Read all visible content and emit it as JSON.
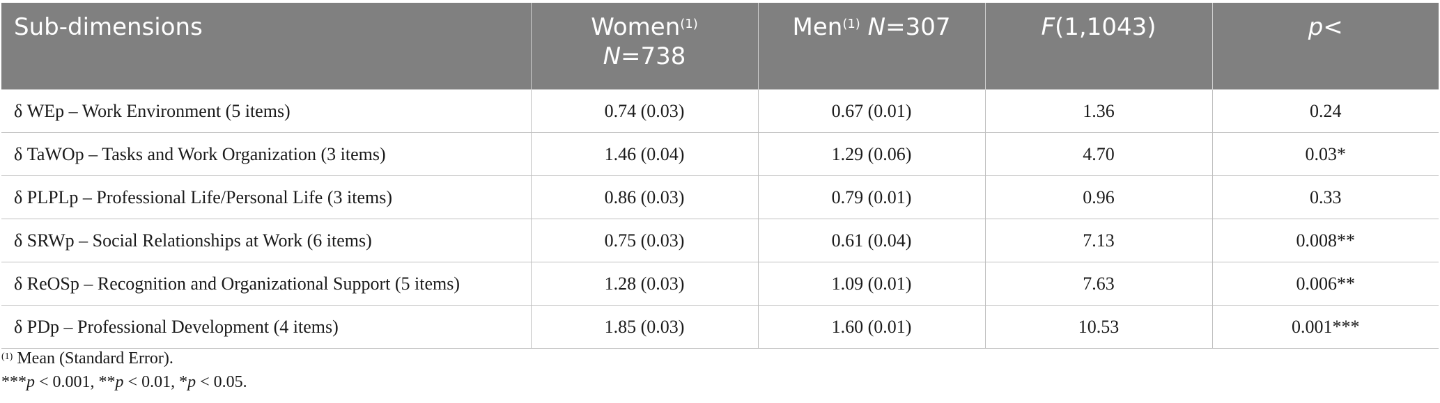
{
  "table": {
    "headers": {
      "col0": "Sub-dimensions",
      "col1_name": "Women",
      "col1_sup": "(1)",
      "col1_n_label": "N",
      "col1_n_value": "=738",
      "col2_name": "Men",
      "col2_sup": "(1)",
      "col2_n_label": "N",
      "col2_n_value": "=307",
      "col3_stat": "F",
      "col3_df": "(1,1043)",
      "col4_p": "p",
      "col4_op": "<"
    },
    "rows": [
      {
        "dimension": "δ WEp – Work Environment (5 items)",
        "women": "0.74 (0.03)",
        "men": "0.67 (0.01)",
        "f": "1.36",
        "p": "0.24"
      },
      {
        "dimension": "δ TaWOp – Tasks and Work Organization (3 items)",
        "women": "1.46 (0.04)",
        "men": "1.29 (0.06)",
        "f": "4.70",
        "p": "0.03*"
      },
      {
        "dimension": "δ PLPLp – Professional Life/Personal Life (3 items)",
        "women": "0.86 (0.03)",
        "men": "0.79 (0.01)",
        "f": "0.96",
        "p": "0.33"
      },
      {
        "dimension": "δ SRWp – Social Relationships at Work (6 items)",
        "women": "0.75 (0.03)",
        "men": "0.61 (0.04)",
        "f": "7.13",
        "p": "0.008**"
      },
      {
        "dimension": "δ ReOSp – Recognition and Organizational Support (5 items)",
        "women": "1.28 (0.03)",
        "men": "1.09 (0.01)",
        "f": "7.63",
        "p": "0.006**"
      },
      {
        "dimension": "δ PDp – Professional Development (4 items)",
        "women": "1.85 (0.03)",
        "men": "1.60 (0.01)",
        "f": "10.53",
        "p": "0.001***"
      }
    ]
  },
  "footnotes": {
    "note1_sup": "(1)",
    "note1_text": " Mean (Standard Error).",
    "sig": [
      {
        "stars": "***",
        "p": "p",
        "rest": " < 0.001, "
      },
      {
        "stars": "**",
        "p": "p",
        "rest": " < 0.01, "
      },
      {
        "stars": "*",
        "p": "p",
        "rest": " < 0.05."
      }
    ]
  }
}
